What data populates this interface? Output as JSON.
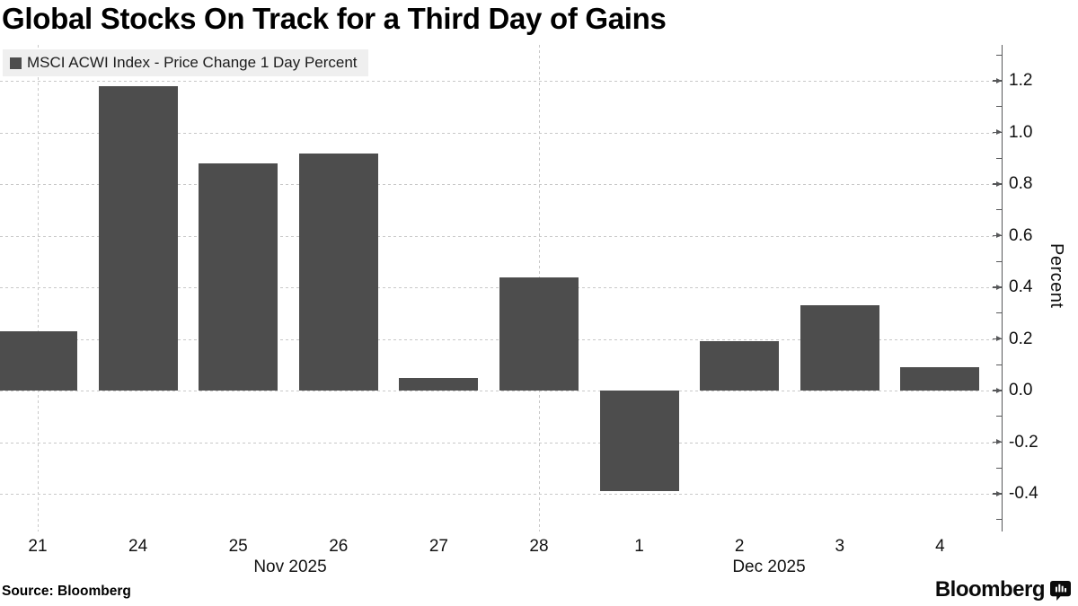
{
  "title": "Global Stocks On Track for a Third Day of Gains",
  "legend": {
    "label": "MSCI ACWI Index - Price Change 1 Day Percent",
    "swatch_color": "#4d4d4d"
  },
  "source": "Source: Bloomberg",
  "branding": {
    "name": "Bloomberg",
    "icon": "bloomberg-terminal-icon"
  },
  "colors": {
    "bar": "#4d4d4d",
    "grid": "#c8c8c8",
    "axis": "#57585a",
    "legend_bg": "#efefef",
    "text": "#111111",
    "background": "#ffffff"
  },
  "chart_data": {
    "type": "bar",
    "series_name": "MSCI ACWI Index - Price Change 1 Day Percent",
    "categories": [
      "21",
      "24",
      "25",
      "26",
      "27",
      "28",
      "1",
      "2",
      "3",
      "4"
    ],
    "values": [
      0.23,
      1.18,
      0.88,
      0.92,
      0.05,
      0.44,
      -0.39,
      0.19,
      0.33,
      0.09
    ],
    "x_group_labels": [
      {
        "label": "Nov 2025"
      },
      {
        "label": "Dec 2025"
      }
    ],
    "xlabel": "",
    "ylabel": "Percent",
    "yticks": [
      1.2,
      1.0,
      0.8,
      0.6,
      0.4,
      0.2,
      0.0,
      -0.2,
      -0.4
    ],
    "ytick_labels": [
      "1.2",
      "1.0",
      "0.8",
      "0.6",
      "0.4",
      "0.2",
      "0.0",
      "-0.2",
      "-0.4"
    ],
    "ylim": [
      -0.55,
      1.34
    ],
    "grid": "dashed horizontal at every 0.2, dashed vertical at week boundaries",
    "vertical_gridline_categories": [
      "21",
      "28"
    ],
    "legend_position": "top-left",
    "y_axis_side": "right"
  }
}
